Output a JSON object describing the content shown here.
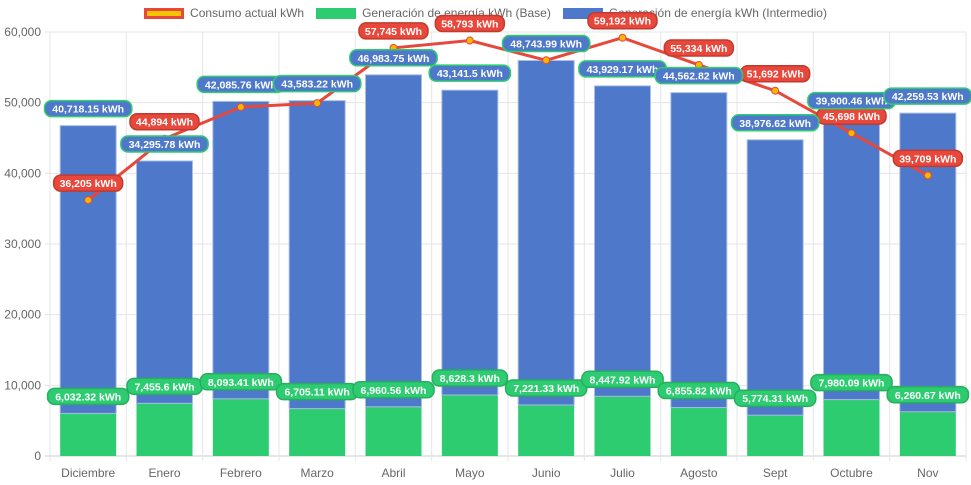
{
  "chart_data": {
    "type": "bar",
    "stacked": true,
    "title": "",
    "xlabel": "",
    "ylabel": "",
    "ylim": [
      0,
      60000
    ],
    "yticks": [
      "0",
      "10,000",
      "20,000",
      "30,000",
      "40,000",
      "50,000",
      "60,000"
    ],
    "grid": true,
    "legend_position": "top",
    "categories": [
      "Diciembre",
      "Enero",
      "Febrero",
      "Marzo",
      "Abril",
      "Mayo",
      "Junio",
      "Julio",
      "Agosto",
      "Sept",
      "Octubre",
      "Nov"
    ],
    "series": [
      {
        "name": "Consumo actual kWh",
        "type": "line",
        "color": "#e8483b",
        "point_color": "#f5b800",
        "values": [
          36205,
          44894,
          49380,
          49940,
          57745,
          58793,
          56000,
          59192,
          55334,
          51692,
          45698,
          39709
        ],
        "labels": [
          "36,205 kWh",
          "44,894 kWh",
          "",
          "",
          "57,745 kWh",
          "58,793 kWh",
          "",
          "59,192 kWh",
          "55,334 kWh",
          "51,692 kWh",
          "45,698 kWh",
          "39,709 kWh"
        ]
      },
      {
        "name": "Generación de energía kWh (Base)",
        "type": "bar",
        "color": "#2ecc71",
        "values": [
          6032.32,
          7455.6,
          8093.41,
          6705.11,
          6960.56,
          8628.3,
          7221.33,
          8447.92,
          6855.82,
          5774.31,
          7980.09,
          6260.67
        ],
        "labels": [
          "6,032.32 kWh",
          "7,455.6 kWh",
          "8,093.41 kWh",
          "6,705.11 kWh",
          "6,960.56 kWh",
          "8,628.3 kWh",
          "7,221.33 kWh",
          "8,447.92 kWh",
          "6,855.82 kWh",
          "5,774.31 kWh",
          "7,980.09 kWh",
          "6,260.67 kWh"
        ]
      },
      {
        "name": "Generación de energía kWh (Intermedio)",
        "type": "bar",
        "color": "#4e78c9",
        "values": [
          40718.15,
          34295.78,
          42085.76,
          43583.22,
          46983.75,
          43141.5,
          48743.99,
          43929.17,
          44562.82,
          38976.62,
          39900.46,
          42259.53
        ],
        "labels": [
          "40,718.15 kWh",
          "34,295.78 kWh",
          "42,085.76 kWh",
          "43,583.22 kWh",
          "46,983.75 kWh",
          "43,141.5 kWh",
          "48,743.99 kWh",
          "43,929.17 kWh",
          "44,562.82 kWh",
          "38,976.62 kWh",
          "39,900.46 kWh",
          "42,259.53 kWh"
        ]
      }
    ]
  }
}
